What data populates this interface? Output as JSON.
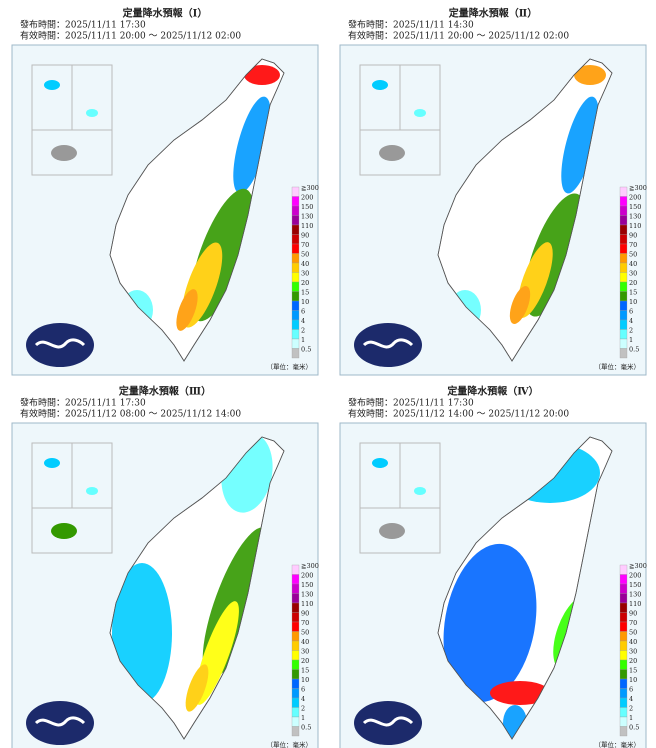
{
  "panels": [
    {
      "title": "定量降水預報（Ⅰ）",
      "issued": "發布時間：2025/11/11 17:30",
      "valid": "有效時間：2025/11/11 20:00 ～ 2025/11/12 02:00"
    },
    {
      "title": "定量降水預報（Ⅱ）",
      "issued": "發布時間：2025/11/11 14:30",
      "valid": "有效時間：2025/11/11 20:00 ～ 2025/11/12 02:00"
    },
    {
      "title": "定量降水預報（Ⅲ）",
      "issued": "發布時間：2025/11/11 17:30",
      "valid": "有效時間：2025/11/12 08:00 ～ 2025/11/12 14:00"
    },
    {
      "title": "定量降水預報（Ⅳ）",
      "issued": "發布時間：2025/11/11 17:30",
      "valid": "有效時間：2025/11/12 14:00 ～ 2025/11/12 20:00"
    }
  ],
  "legend": {
    "levels": [
      "≧300",
      "200",
      "150",
      "130",
      "110",
      "90",
      "70",
      "50",
      "40",
      "30",
      "20",
      "15",
      "10",
      "6",
      "4",
      "2",
      "1",
      "0.5"
    ],
    "colors": [
      "#ffccff",
      "#ff00ff",
      "#cc00cc",
      "#990099",
      "#990000",
      "#cc0000",
      "#ff0000",
      "#ff9900",
      "#ffcc00",
      "#ffff00",
      "#33ff00",
      "#339900",
      "#0066ff",
      "#0099ff",
      "#00ccff",
      "#66ffff",
      "#ccffff",
      "#c1c1c1"
    ],
    "unit": "（單位：毫米）"
  }
}
